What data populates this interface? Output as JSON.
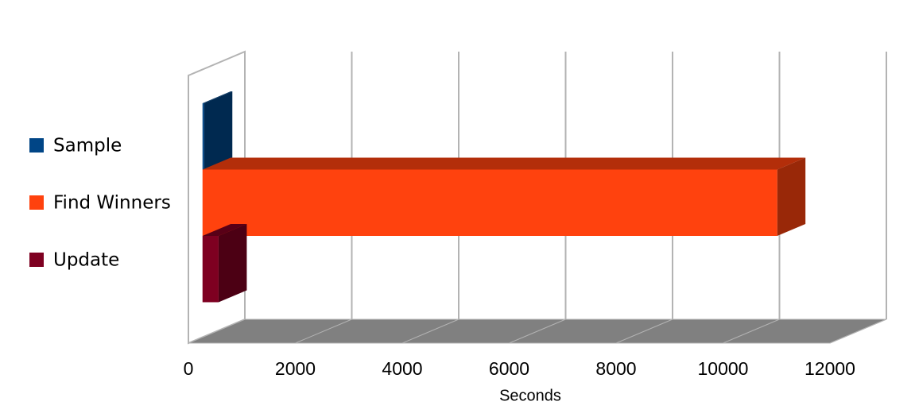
{
  "chart_data": {
    "type": "bar3d",
    "orientation": "horizontal",
    "x_label": "Seconds",
    "series": [
      {
        "name": "Sample",
        "color": "#004586",
        "values": [
          30
        ]
      },
      {
        "name": "Find Winners",
        "color": "#ff420e",
        "values": [
          10750
        ]
      },
      {
        "name": "Update",
        "color": "#7e0021",
        "values": [
          300
        ]
      }
    ],
    "xlim": [
      0,
      12000
    ],
    "xticks": [
      0,
      2000,
      4000,
      6000,
      8000,
      10000,
      12000
    ],
    "grid": true,
    "legend": "left"
  }
}
